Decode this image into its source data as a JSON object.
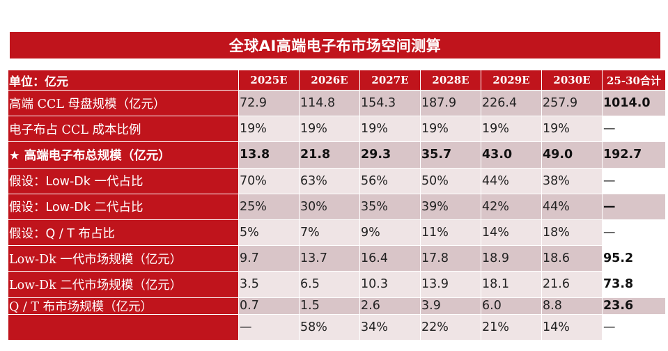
{
  "title": "全球AI高端电子布市场空间测算",
  "header": {
    "unit": "单位：亿元",
    "years": [
      "2025E",
      "2026E",
      "2027E",
      "2028E",
      "2029E",
      "2030E"
    ],
    "total": "25-30合计"
  },
  "rows": [
    {
      "label": "高端 CCL 母盘规模（亿元）",
      "values": [
        "72.9",
        "114.8",
        "154.3",
        "187.9",
        "226.4",
        "257.9"
      ],
      "total": "1014.0"
    },
    {
      "label": "电子布占 CCL 成本比例",
      "values": [
        "19%",
        "19%",
        "19%",
        "19%",
        "19%",
        "19%"
      ],
      "total": "—"
    },
    {
      "label": "★ 高端电子布总规模（亿元）",
      "values": [
        "13.8",
        "21.8",
        "29.3",
        "35.7",
        "43.0",
        "49.0"
      ],
      "total": "192.7"
    },
    {
      "label": "假设：Low-Dk 一代占比",
      "values": [
        "70%",
        "63%",
        "56%",
        "50%",
        "44%",
        "38%"
      ],
      "total": "—"
    },
    {
      "label": "假设：Low-Dk 二代占比",
      "values": [
        "25%",
        "30%",
        "35%",
        "39%",
        "42%",
        "44%"
      ],
      "total": "—"
    },
    {
      "label": "假设：Q / T 布占比",
      "values": [
        "5%",
        "7%",
        "9%",
        "11%",
        "14%",
        "18%"
      ],
      "total": "—"
    },
    {
      "label": "Low-Dk 一代市场规模（亿元）",
      "values": [
        "9.7",
        "13.7",
        "16.4",
        "17.8",
        "18.9",
        "18.6"
      ],
      "total": "95.2"
    },
    {
      "label": "Low-Dk 二代市场规模（亿元）",
      "values": [
        "3.5",
        "6.5",
        "10.3",
        "13.9",
        "18.1",
        "21.6"
      ],
      "total": "73.8"
    },
    {
      "label": "Q / T 布市场规模（亿元）",
      "values": [
        "0.7",
        "1.5",
        "2.6",
        "3.9",
        "6.0",
        "8.8"
      ],
      "total": "23.6"
    },
    {
      "label": "",
      "values": [
        "—",
        "58%",
        "34%",
        "22%",
        "21%",
        "14%"
      ],
      "total": "—"
    }
  ],
  "colors": {
    "brand_red": "#c0141c",
    "band_dark": "#d9c5c8",
    "band_light": "#efe4e5"
  }
}
